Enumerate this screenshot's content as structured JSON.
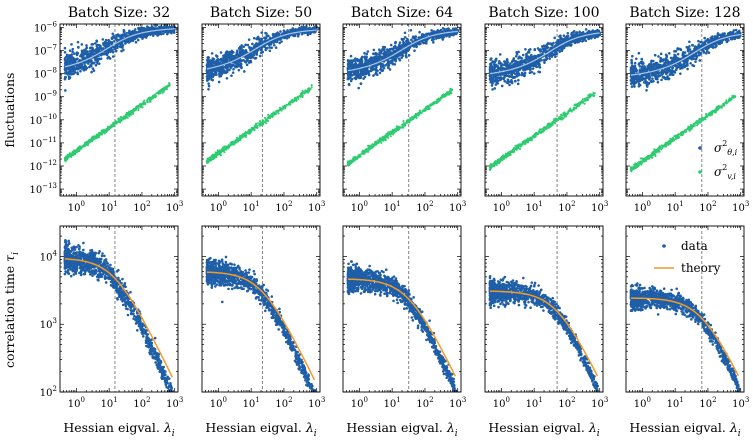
{
  "colors": {
    "theta": "#1f5fa8",
    "theta_fit": "#a9c6ea",
    "v": "#2ecc71",
    "theory": "#f59a23",
    "guide": "#777777"
  },
  "shared": {
    "top_ylabel": "fluctuations",
    "bottom_ylabel": "correlation time τ",
    "bottom_ylabel_sub": "i",
    "xlabel": "Hessian eigval. λ",
    "xlabel_sub": "i",
    "top_yticks": [
      {
        "base": "10",
        "exp": "−6",
        "v": -6
      },
      {
        "base": "10",
        "exp": "−7",
        "v": -7
      },
      {
        "base": "10",
        "exp": "−8",
        "v": -8
      },
      {
        "base": "10",
        "exp": "−9",
        "v": -9
      },
      {
        "base": "10",
        "exp": "−10",
        "v": -10
      },
      {
        "base": "10",
        "exp": "−11",
        "v": -11
      },
      {
        "base": "10",
        "exp": "−12",
        "v": -12
      },
      {
        "base": "10",
        "exp": "−13",
        "v": -13
      }
    ],
    "bottom_yticks": [
      {
        "base": "10",
        "exp": "4",
        "v": 4
      },
      {
        "base": "10",
        "exp": "3",
        "v": 3
      },
      {
        "base": "10",
        "exp": "2",
        "v": 2
      }
    ],
    "xticks": [
      {
        "base": "10",
        "exp": "0",
        "v": 0
      },
      {
        "base": "10",
        "exp": "1",
        "v": 1
      },
      {
        "base": "10",
        "exp": "2",
        "v": 2
      },
      {
        "base": "10",
        "exp": "3",
        "v": 3
      }
    ],
    "top_legend": [
      {
        "label": "σ",
        "sup": "2",
        "sub": "θ,i",
        "color_key": "theta"
      },
      {
        "label": "σ",
        "sup": "2",
        "sub": "v,i",
        "color_key": "v"
      }
    ],
    "bottom_legend": [
      {
        "label": "data",
        "kind": "dot"
      },
      {
        "label": "theory",
        "kind": "line"
      }
    ]
  },
  "chart_data": [
    {
      "type": "scatter",
      "panel": "fluctuations",
      "title": "Batch Size: 32",
      "x_log10_range": [
        -0.5,
        3.1
      ],
      "y_log10_range": [
        -13.3,
        -5.85
      ],
      "crossover_lambda": 15,
      "series": [
        {
          "name": "σ²_θ,i",
          "log10_low": -7.9,
          "log10_high": -6.25,
          "spread": 0.55
        },
        {
          "name": "σ²_v,i",
          "log10_at_lambda_1": -11.35,
          "slope": 1.0
        }
      ]
    },
    {
      "type": "scatter",
      "panel": "fluctuations",
      "title": "Batch Size: 50",
      "x_log10_range": [
        -0.5,
        3.1
      ],
      "y_log10_range": [
        -13.3,
        -5.85
      ],
      "crossover_lambda": 22,
      "series": [
        {
          "name": "σ²_θ,i",
          "log10_low": -7.95,
          "log10_high": -6.3,
          "spread": 0.5
        },
        {
          "name": "σ²_v,i",
          "log10_at_lambda_1": -11.45,
          "slope": 1.0
        }
      ]
    },
    {
      "type": "scatter",
      "panel": "fluctuations",
      "title": "Batch Size: 64",
      "x_log10_range": [
        -0.5,
        3.1
      ],
      "y_log10_range": [
        -13.3,
        -5.85
      ],
      "crossover_lambda": 32,
      "series": [
        {
          "name": "σ²_θ,i",
          "log10_low": -8.0,
          "log10_high": -6.35,
          "spread": 0.5
        },
        {
          "name": "σ²_v,i",
          "log10_at_lambda_1": -11.55,
          "slope": 1.0
        }
      ]
    },
    {
      "type": "scatter",
      "panel": "fluctuations",
      "title": "Batch Size: 100",
      "x_log10_range": [
        -0.5,
        3.1
      ],
      "y_log10_range": [
        -13.3,
        -5.85
      ],
      "crossover_lambda": 50,
      "series": [
        {
          "name": "σ²_θ,i",
          "log10_low": -8.1,
          "log10_high": -6.4,
          "spread": 0.5
        },
        {
          "name": "σ²_v,i",
          "log10_at_lambda_1": -11.7,
          "slope": 1.0
        }
      ]
    },
    {
      "type": "scatter",
      "panel": "fluctuations",
      "title": "Batch Size: 128",
      "x_log10_range": [
        -0.5,
        3.1
      ],
      "y_log10_range": [
        -13.3,
        -5.85
      ],
      "crossover_lambda": 65,
      "series": [
        {
          "name": "σ²_θ,i",
          "log10_low": -8.15,
          "log10_high": -6.45,
          "spread": 0.5
        },
        {
          "name": "σ²_v,i",
          "log10_at_lambda_1": -11.8,
          "slope": 1.0
        }
      ]
    },
    {
      "type": "scatter",
      "panel": "correlation_time",
      "title": "Batch Size: 32",
      "x_log10_range": [
        -0.5,
        3.1
      ],
      "y_log10_range": [
        2.0,
        4.45
      ],
      "crossover_lambda": 15,
      "tau0": 9500,
      "data_spread": 0.22,
      "series": [
        {
          "name": "data"
        },
        {
          "name": "theory",
          "formula": "tau0 / (1 + lambda/crossover)"
        }
      ]
    },
    {
      "type": "scatter",
      "panel": "correlation_time",
      "title": "Batch Size: 50",
      "x_log10_range": [
        -0.5,
        3.1
      ],
      "y_log10_range": [
        2.0,
        4.45
      ],
      "crossover_lambda": 22,
      "tau0": 6000,
      "data_spread": 0.2,
      "series": [
        {
          "name": "data"
        },
        {
          "name": "theory",
          "formula": "tau0 / (1 + lambda/crossover)"
        }
      ]
    },
    {
      "type": "scatter",
      "panel": "correlation_time",
      "title": "Batch Size: 64",
      "x_log10_range": [
        -0.5,
        3.1
      ],
      "y_log10_range": [
        2.0,
        4.45
      ],
      "crossover_lambda": 32,
      "tau0": 4700,
      "data_spread": 0.2,
      "series": [
        {
          "name": "data"
        },
        {
          "name": "theory",
          "formula": "tau0 / (1 + lambda/crossover)"
        }
      ]
    },
    {
      "type": "scatter",
      "panel": "correlation_time",
      "title": "Batch Size: 100",
      "x_log10_range": [
        -0.5,
        3.1
      ],
      "y_log10_range": [
        2.0,
        4.45
      ],
      "crossover_lambda": 50,
      "tau0": 3100,
      "data_spread": 0.18,
      "series": [
        {
          "name": "data"
        },
        {
          "name": "theory",
          "formula": "tau0 / (1 + lambda/crossover)"
        }
      ]
    },
    {
      "type": "scatter",
      "panel": "correlation_time",
      "title": "Batch Size: 128",
      "x_log10_range": [
        -0.5,
        3.1
      ],
      "y_log10_range": [
        2.0,
        4.45
      ],
      "crossover_lambda": 65,
      "tau0": 2450,
      "data_spread": 0.18,
      "series": [
        {
          "name": "data"
        },
        {
          "name": "theory",
          "formula": "tau0 / (1 + lambda/crossover)"
        }
      ]
    }
  ]
}
